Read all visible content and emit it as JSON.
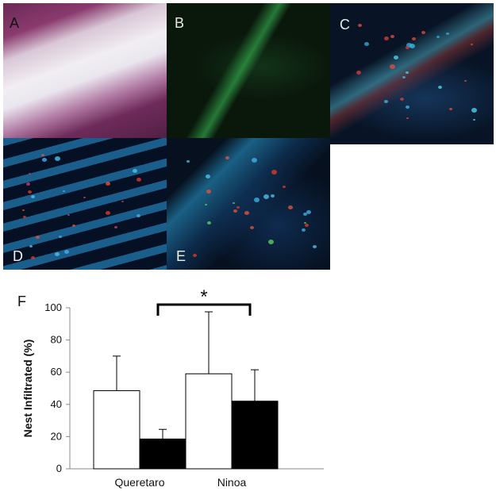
{
  "panels": [
    {
      "id": "A",
      "label": "A"
    },
    {
      "id": "B",
      "label": "B"
    },
    {
      "id": "C",
      "label": "C"
    },
    {
      "id": "D",
      "label": "D"
    },
    {
      "id": "E",
      "label": "E"
    }
  ],
  "chart_data": {
    "type": "bar",
    "panel_label": "F",
    "categories": [
      "Queretaro",
      "Ninoa"
    ],
    "series": [
      {
        "values": [
          48.5,
          59
        ],
        "errors": [
          21.5,
          38.5
        ],
        "color": "#ffffff"
      },
      {
        "values": [
          18.5,
          42
        ],
        "errors": [
          6,
          19.5
        ],
        "color": "#000000"
      }
    ],
    "ylabel": "Nest Infiltrated (%)",
    "xlabel": "",
    "ylim": [
      0,
      100
    ],
    "yticks": [
      0,
      20,
      40,
      60,
      80,
      100
    ],
    "significance": {
      "marker": "*",
      "between": [
        0,
        1
      ]
    },
    "grid": false,
    "legend": "none"
  }
}
